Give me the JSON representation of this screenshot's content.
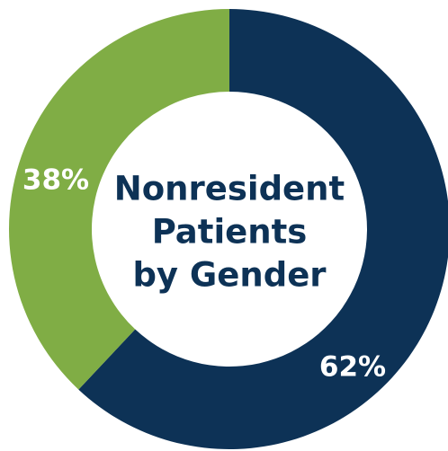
{
  "chart_data": {
    "type": "donut",
    "title": [
      "Nonresident",
      "Patients",
      "by Gender"
    ],
    "categories": [
      null,
      null
    ],
    "values": [
      62,
      38
    ],
    "value_labels": [
      "62%",
      "38%"
    ],
    "colors": [
      "#0d3256",
      "#80ad45"
    ]
  }
}
